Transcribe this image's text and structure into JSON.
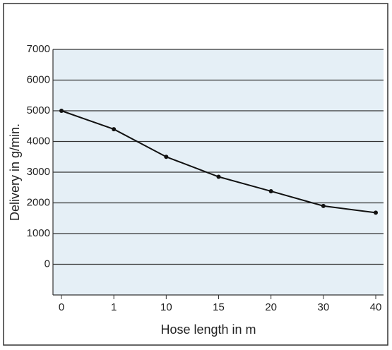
{
  "chart_data": {
    "type": "line",
    "xlabel": "Hose length in m",
    "ylabel": "Delivery in g/min.",
    "categories": [
      "0",
      "1",
      "10",
      "15",
      "20",
      "30",
      "40"
    ],
    "series": [
      {
        "color": "#111111",
        "values": [
          5000,
          4400,
          3500,
          2850,
          2380,
          1900,
          1680
        ]
      }
    ],
    "ylim": [
      -1000,
      7000
    ],
    "yticks": [
      0,
      1000,
      2000,
      3000,
      4000,
      5000,
      6000,
      7000
    ],
    "grid": true
  }
}
